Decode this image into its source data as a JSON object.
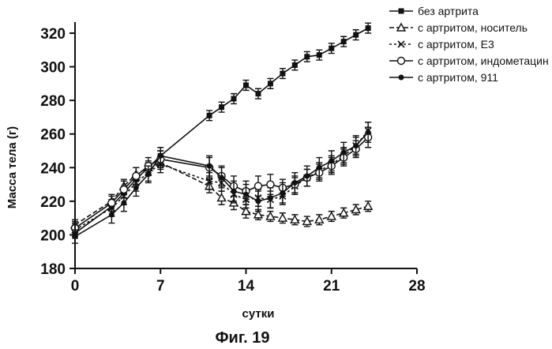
{
  "caption": "Фиг. 19",
  "chart_data": {
    "type": "line",
    "xlabel": "сутки",
    "ylabel": "Масса тела (г)",
    "xlim": [
      0,
      28
    ],
    "ylim": [
      180,
      330
    ],
    "xticks": [
      0,
      7,
      14,
      21,
      28
    ],
    "yticks": [
      180,
      200,
      220,
      240,
      260,
      280,
      300,
      320
    ],
    "grid": false,
    "legend_position": "top-right",
    "series": [
      {
        "name": "без артрита",
        "marker": "filled-square",
        "x": [
          0,
          3,
          4,
          5,
          6,
          7,
          11,
          12,
          13,
          14,
          15,
          16,
          17,
          18,
          19,
          20,
          21,
          22,
          23,
          24
        ],
        "y": [
          201,
          217,
          225,
          233,
          240,
          247,
          271,
          276,
          281,
          289,
          284,
          290,
          296,
          301,
          306,
          307,
          311,
          315,
          319,
          323
        ],
        "err": [
          3,
          3,
          3,
          3,
          3,
          3,
          3,
          3,
          3,
          3,
          3,
          3,
          3,
          3,
          3,
          3,
          3,
          3,
          3,
          3
        ]
      },
      {
        "name": "с артритом, носитель",
        "marker": "open-triangle",
        "x": [
          0,
          3,
          4,
          5,
          6,
          7,
          11,
          12,
          13,
          14,
          15,
          16,
          17,
          18,
          19,
          20,
          21,
          22,
          23,
          24
        ],
        "y": [
          206,
          220,
          229,
          236,
          240,
          243,
          229,
          222,
          219,
          214,
          212,
          211,
          210,
          209,
          208,
          209,
          211,
          213,
          215,
          217
        ],
        "err": [
          3,
          3,
          4,
          4,
          4,
          4,
          4,
          4,
          4,
          4,
          3,
          3,
          3,
          3,
          3,
          3,
          3,
          3,
          3,
          3
        ]
      },
      {
        "name": "с артритом, Е3",
        "marker": "cross",
        "x": [
          0,
          3,
          4,
          5,
          6,
          7,
          11,
          12,
          13,
          14,
          15,
          16,
          17,
          18,
          19,
          20,
          21,
          22,
          23,
          24
        ],
        "y": [
          203,
          216,
          223,
          231,
          237,
          242,
          232,
          231,
          224,
          221,
          222,
          221,
          223,
          229,
          234,
          238,
          242,
          247,
          253,
          262
        ],
        "err": [
          4,
          5,
          5,
          5,
          5,
          5,
          5,
          5,
          5,
          5,
          5,
          5,
          5,
          5,
          5,
          5,
          5,
          5,
          5,
          5
        ]
      },
      {
        "name": "с артритом, индометацин",
        "marker": "open-circle",
        "x": [
          0,
          3,
          4,
          5,
          6,
          7,
          11,
          12,
          13,
          14,
          15,
          16,
          17,
          18,
          19,
          20,
          21,
          22,
          23,
          24
        ],
        "y": [
          204,
          219,
          227,
          235,
          241,
          245,
          240,
          235,
          229,
          226,
          229,
          230,
          228,
          230,
          234,
          237,
          241,
          246,
          251,
          258
        ],
        "err": [
          4,
          5,
          5,
          5,
          5,
          5,
          6,
          6,
          6,
          6,
          6,
          6,
          5,
          5,
          5,
          5,
          5,
          5,
          5,
          6
        ]
      },
      {
        "name": "с артритом, 911",
        "marker": "filled-circle",
        "x": [
          0,
          3,
          4,
          5,
          6,
          7,
          11,
          12,
          13,
          14,
          15,
          16,
          17,
          18,
          19,
          20,
          21,
          22,
          23,
          24
        ],
        "y": [
          199,
          212,
          219,
          228,
          236,
          247,
          241,
          234,
          226,
          224,
          220,
          222,
          225,
          231,
          235,
          240,
          244,
          249,
          253,
          261
        ],
        "err": [
          4,
          5,
          5,
          5,
          5,
          5,
          6,
          6,
          6,
          6,
          6,
          6,
          6,
          6,
          6,
          6,
          6,
          6,
          6,
          6
        ]
      }
    ]
  }
}
